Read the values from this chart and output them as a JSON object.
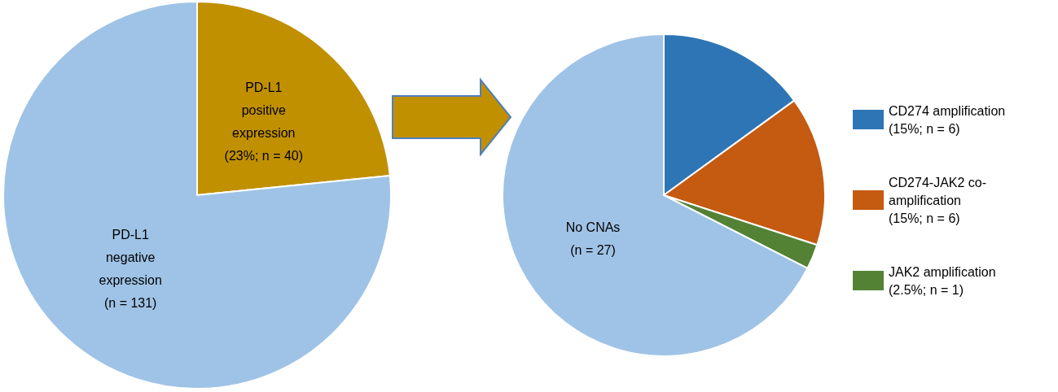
{
  "chart_data": [
    {
      "type": "pie",
      "categories": [
        "PD-L1 positive expression (23%; n = 40)",
        "PD-L1 negative expression (n = 131)"
      ],
      "values": [
        40,
        131
      ],
      "colors": [
        "#c09000",
        "#9fc3e6"
      ]
    },
    {
      "type": "pie",
      "categories": [
        "CD274 amplification (15%; n = 6)",
        "CD274-JAK2 co-amplification (15%; n = 6)",
        "JAK2 amplification (2.5%; n = 1)",
        "No CNAs (n = 27)"
      ],
      "values": [
        6,
        6,
        1,
        27
      ],
      "colors": [
        "#2e75b6",
        "#c55a11",
        "#548235",
        "#9fc3e6"
      ],
      "legend": "right"
    }
  ]
}
